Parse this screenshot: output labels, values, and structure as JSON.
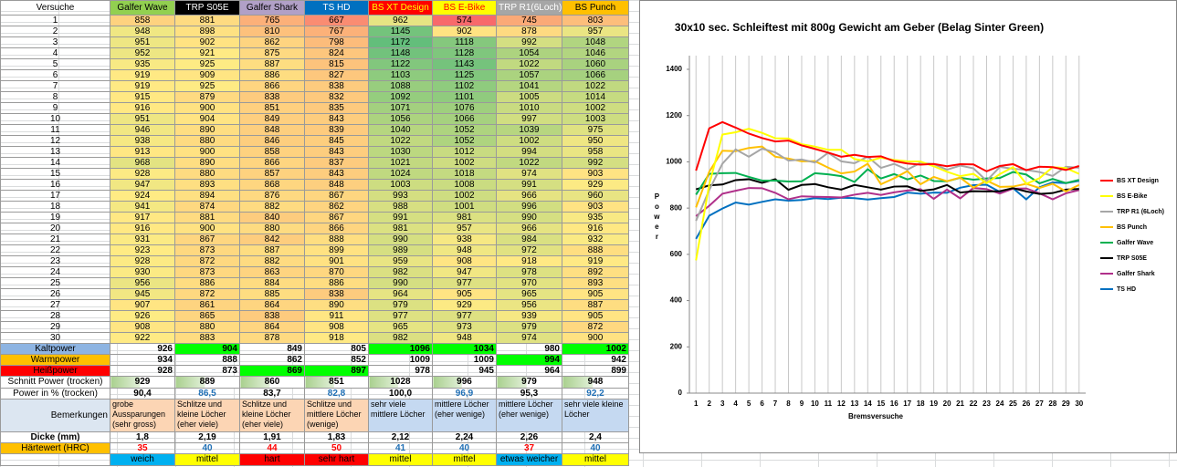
{
  "table": {
    "header": [
      "Versuche",
      "Galfer Wave",
      "TRP S05E",
      "Galfer Shark",
      "TS HD",
      "BS XT Design",
      "BS E-Bike",
      "TRP R1(6Loch)",
      "BS Punch"
    ],
    "rows": [
      [
        1,
        858,
        881,
        765,
        667,
        962,
        574,
        745,
        803
      ],
      [
        2,
        948,
        898,
        810,
        767,
        1145,
        902,
        878,
        957
      ],
      [
        3,
        951,
        902,
        862,
        798,
        1172,
        1118,
        992,
        1048
      ],
      [
        4,
        952,
        921,
        875,
        824,
        1148,
        1128,
        1054,
        1046
      ],
      [
        5,
        935,
        925,
        887,
        815,
        1122,
        1143,
        1022,
        1060
      ],
      [
        6,
        919,
        909,
        886,
        827,
        1103,
        1125,
        1057,
        1066
      ],
      [
        7,
        919,
        925,
        866,
        838,
        1088,
        1102,
        1041,
        1022
      ],
      [
        8,
        915,
        879,
        838,
        832,
        1092,
        1101,
        1005,
        1014
      ],
      [
        9,
        916,
        900,
        851,
        835,
        1071,
        1076,
        1010,
        1002
      ],
      [
        10,
        951,
        904,
        849,
        843,
        1056,
        1066,
        997,
        1003
      ],
      [
        11,
        946,
        890,
        848,
        839,
        1040,
        1052,
        1039,
        975
      ],
      [
        12,
        938,
        880,
        846,
        845,
        1022,
        1052,
        1002,
        950
      ],
      [
        13,
        913,
        900,
        858,
        843,
        1030,
        1012,
        994,
        958
      ],
      [
        14,
        968,
        890,
        866,
        837,
        1021,
        1002,
        1022,
        992
      ],
      [
        15,
        928,
        880,
        857,
        843,
        1024,
        1018,
        974,
        903
      ],
      [
        16,
        947,
        893,
        868,
        848,
        1003,
        1008,
        991,
        929
      ],
      [
        17,
        924,
        894,
        876,
        867,
        993,
        1002,
        966,
        960
      ],
      [
        18,
        941,
        874,
        882,
        862,
        988,
        1001,
        996,
        903
      ],
      [
        19,
        917,
        881,
        840,
        867,
        991,
        981,
        990,
        935
      ],
      [
        20,
        916,
        900,
        880,
        866,
        981,
        957,
        966,
        916
      ],
      [
        21,
        931,
        867,
        842,
        888,
        990,
        938,
        984,
        932
      ],
      [
        22,
        923,
        873,
        887,
        899,
        989,
        948,
        972,
        888
      ],
      [
        23,
        928,
        872,
        882,
        901,
        959,
        908,
        918,
        919
      ],
      [
        24,
        930,
        873,
        863,
        870,
        982,
        947,
        978,
        892
      ],
      [
        25,
        956,
        886,
        884,
        886,
        990,
        977,
        970,
        893
      ],
      [
        26,
        945,
        872,
        885,
        838,
        964,
        905,
        965,
        905
      ],
      [
        27,
        907,
        861,
        864,
        890,
        979,
        929,
        956,
        887
      ],
      [
        28,
        926,
        865,
        838,
        911,
        977,
        977,
        939,
        905
      ],
      [
        29,
        908,
        880,
        864,
        908,
        965,
        973,
        979,
        872
      ],
      [
        30,
        922,
        883,
        878,
        918,
        982,
        948,
        974,
        900
      ]
    ],
    "summary": [
      [
        "Kaltpower",
        926,
        904,
        849,
        805,
        1096,
        1034,
        980,
        1002
      ],
      [
        "Warmpower",
        934,
        888,
        862,
        852,
        1009,
        1009,
        994,
        942
      ],
      [
        "Heißpower",
        928,
        873,
        869,
        897,
        978,
        945,
        964,
        899
      ],
      [
        "Schnitt Power (trocken)",
        929,
        889,
        860,
        851,
        1028,
        996,
        979,
        948
      ],
      [
        "Power in % (trocken)",
        "90,4",
        "86,5",
        "83,7",
        "82,8",
        "100,0",
        "96,9",
        "95,3",
        "92,2"
      ],
      [
        "Bemerkungen",
        "grobe Aussparungen (sehr gross)",
        "Schlitze und kleine Löcher (eher viele)",
        "Schlitze und kleine Löcher (eher viele)",
        "Schlitze und mittlere Löcher (wenige)",
        "sehr viele mittlere Löcher",
        "mittlere Löcher (eher wenige)",
        "mittlere Löcher (eher wenige)",
        "sehr viele kleine Löcher"
      ],
      [
        "Dicke (mm)",
        "1,8",
        "2,19",
        "1,91",
        "1,83",
        "2,12",
        "2,24",
        "2,26",
        "2,4"
      ],
      [
        "Härtewert (HRC)",
        35,
        40,
        44,
        50,
        41,
        40,
        37,
        40
      ]
    ],
    "rating": [
      "weich",
      "mittel",
      "hart",
      "sehr hart",
      "mittel",
      "mittel",
      "etwas weicher",
      "mittel"
    ]
  },
  "chart_data": {
    "type": "line",
    "title": "30x10 sec. Schleiftest mit 800g Gewicht am Geber (Belag Sinter Green)",
    "x_label": "Bremsversuche",
    "y_label": "Power",
    "legend": "right",
    "grid": true,
    "categories": [
      1,
      2,
      3,
      4,
      5,
      6,
      7,
      8,
      9,
      10,
      11,
      12,
      13,
      14,
      15,
      16,
      17,
      18,
      19,
      20,
      21,
      22,
      23,
      24,
      25,
      26,
      27,
      28,
      29,
      30
    ],
    "ylim": [
      0,
      1400
    ],
    "yticks": [
      0,
      200,
      400,
      600,
      800,
      1000,
      1200,
      1400
    ],
    "series": [
      {
        "name": "BS XT Design",
        "color": "#ff0000",
        "values": [
          962,
          1145,
          1172,
          1148,
          1122,
          1103,
          1088,
          1092,
          1071,
          1056,
          1040,
          1022,
          1030,
          1021,
          1024,
          1003,
          993,
          988,
          991,
          981,
          990,
          989,
          959,
          982,
          990,
          964,
          979,
          977,
          965,
          982
        ]
      },
      {
        "name": "BS E-Bike",
        "color": "#ffff00",
        "values": [
          574,
          902,
          1118,
          1128,
          1143,
          1125,
          1102,
          1101,
          1076,
          1066,
          1052,
          1052,
          1012,
          1002,
          1018,
          1008,
          1002,
          1001,
          981,
          957,
          938,
          948,
          908,
          947,
          977,
          905,
          929,
          977,
          973,
          948
        ]
      },
      {
        "name": "TRP R1 (6Loch)",
        "color": "#a6a6a6",
        "values": [
          745,
          878,
          992,
          1054,
          1022,
          1057,
          1041,
          1005,
          1010,
          997,
          1039,
          1002,
          994,
          1022,
          974,
          991,
          966,
          996,
          990,
          966,
          984,
          972,
          918,
          978,
          970,
          965,
          956,
          939,
          979,
          974
        ]
      },
      {
        "name": "BS Punch",
        "color": "#ffc000",
        "values": [
          803,
          957,
          1048,
          1046,
          1060,
          1066,
          1022,
          1014,
          1002,
          1003,
          975,
          950,
          958,
          992,
          903,
          929,
          960,
          903,
          935,
          916,
          932,
          888,
          919,
          892,
          893,
          905,
          887,
          905,
          872,
          900
        ]
      },
      {
        "name": "Galfer Wave",
        "color": "#00b050",
        "values": [
          858,
          948,
          951,
          952,
          935,
          919,
          919,
          915,
          916,
          951,
          946,
          938,
          913,
          968,
          928,
          947,
          924,
          941,
          917,
          916,
          931,
          923,
          928,
          930,
          956,
          945,
          907,
          926,
          908,
          922
        ]
      },
      {
        "name": "TRP S05E",
        "color": "#000000",
        "values": [
          881,
          898,
          902,
          921,
          925,
          909,
          925,
          879,
          900,
          904,
          890,
          880,
          900,
          890,
          880,
          893,
          894,
          874,
          881,
          900,
          867,
          873,
          872,
          873,
          886,
          872,
          861,
          865,
          880,
          883
        ]
      },
      {
        "name": "Galfer Shark",
        "color": "#b0308a",
        "values": [
          765,
          810,
          862,
          875,
          887,
          886,
          866,
          838,
          851,
          849,
          848,
          846,
          858,
          866,
          857,
          868,
          876,
          882,
          840,
          880,
          842,
          887,
          882,
          863,
          884,
          885,
          864,
          838,
          864,
          878
        ]
      },
      {
        "name": "TS HD",
        "color": "#0070c0",
        "values": [
          667,
          767,
          798,
          824,
          815,
          827,
          838,
          832,
          835,
          843,
          839,
          845,
          843,
          837,
          843,
          848,
          867,
          862,
          867,
          866,
          888,
          899,
          901,
          870,
          886,
          838,
          890,
          911,
          908,
          918
        ]
      }
    ]
  }
}
